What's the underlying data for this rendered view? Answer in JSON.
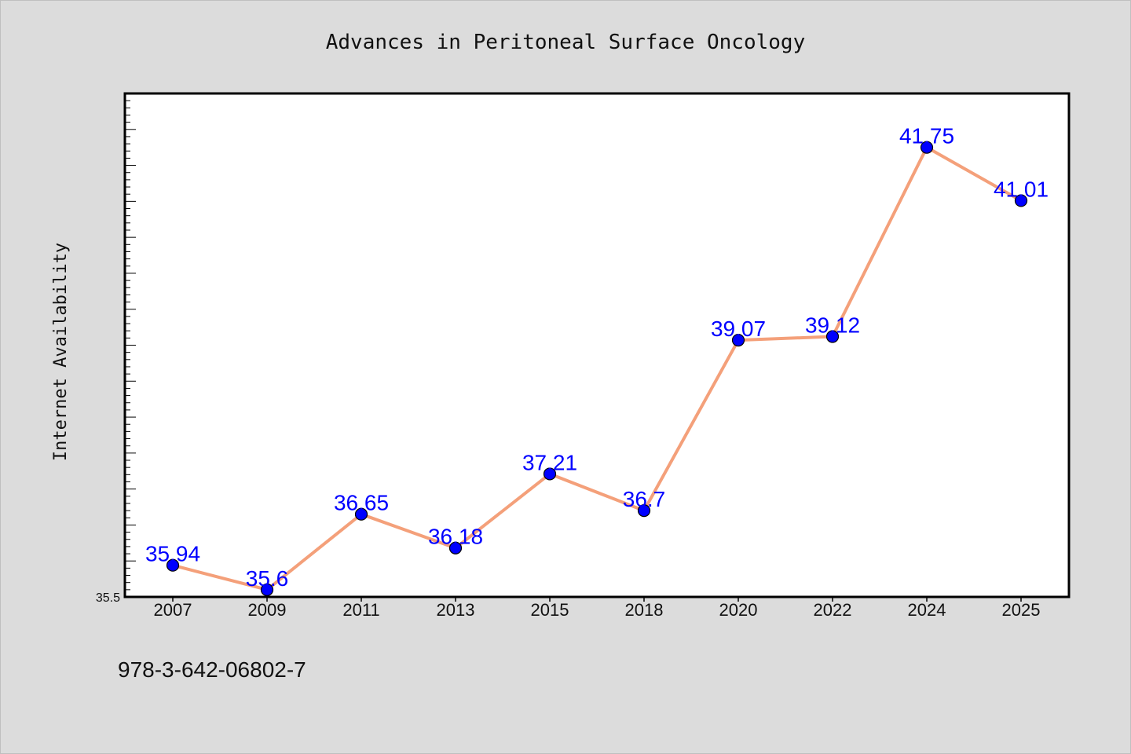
{
  "chart_data": {
    "type": "line",
    "title": "Advances in Peritoneal Surface Oncology",
    "ylabel": "Internet Availability",
    "xlabel": "",
    "categories": [
      "2007",
      "2009",
      "2011",
      "2013",
      "2015",
      "2018",
      "2020",
      "2022",
      "2024",
      "2025"
    ],
    "series": [
      {
        "values": [
          35.94,
          35.6,
          36.65,
          36.18,
          37.21,
          36.7,
          39.07,
          39.12,
          41.75,
          41.01
        ],
        "labels": [
          "35.94",
          "35.6",
          "36.65",
          "36.18",
          "37.21",
          "36.7",
          "39.07",
          "39.12",
          "41.75",
          "41.01"
        ],
        "line_color": "#f4a07a",
        "marker_color": "#0000ff"
      }
    ],
    "ylim": [
      35.5,
      42.5
    ],
    "ytick_labels": [
      "35.5"
    ],
    "grid": false,
    "legend": "none"
  },
  "footer": {
    "text": "978-3-642-06802-7"
  }
}
